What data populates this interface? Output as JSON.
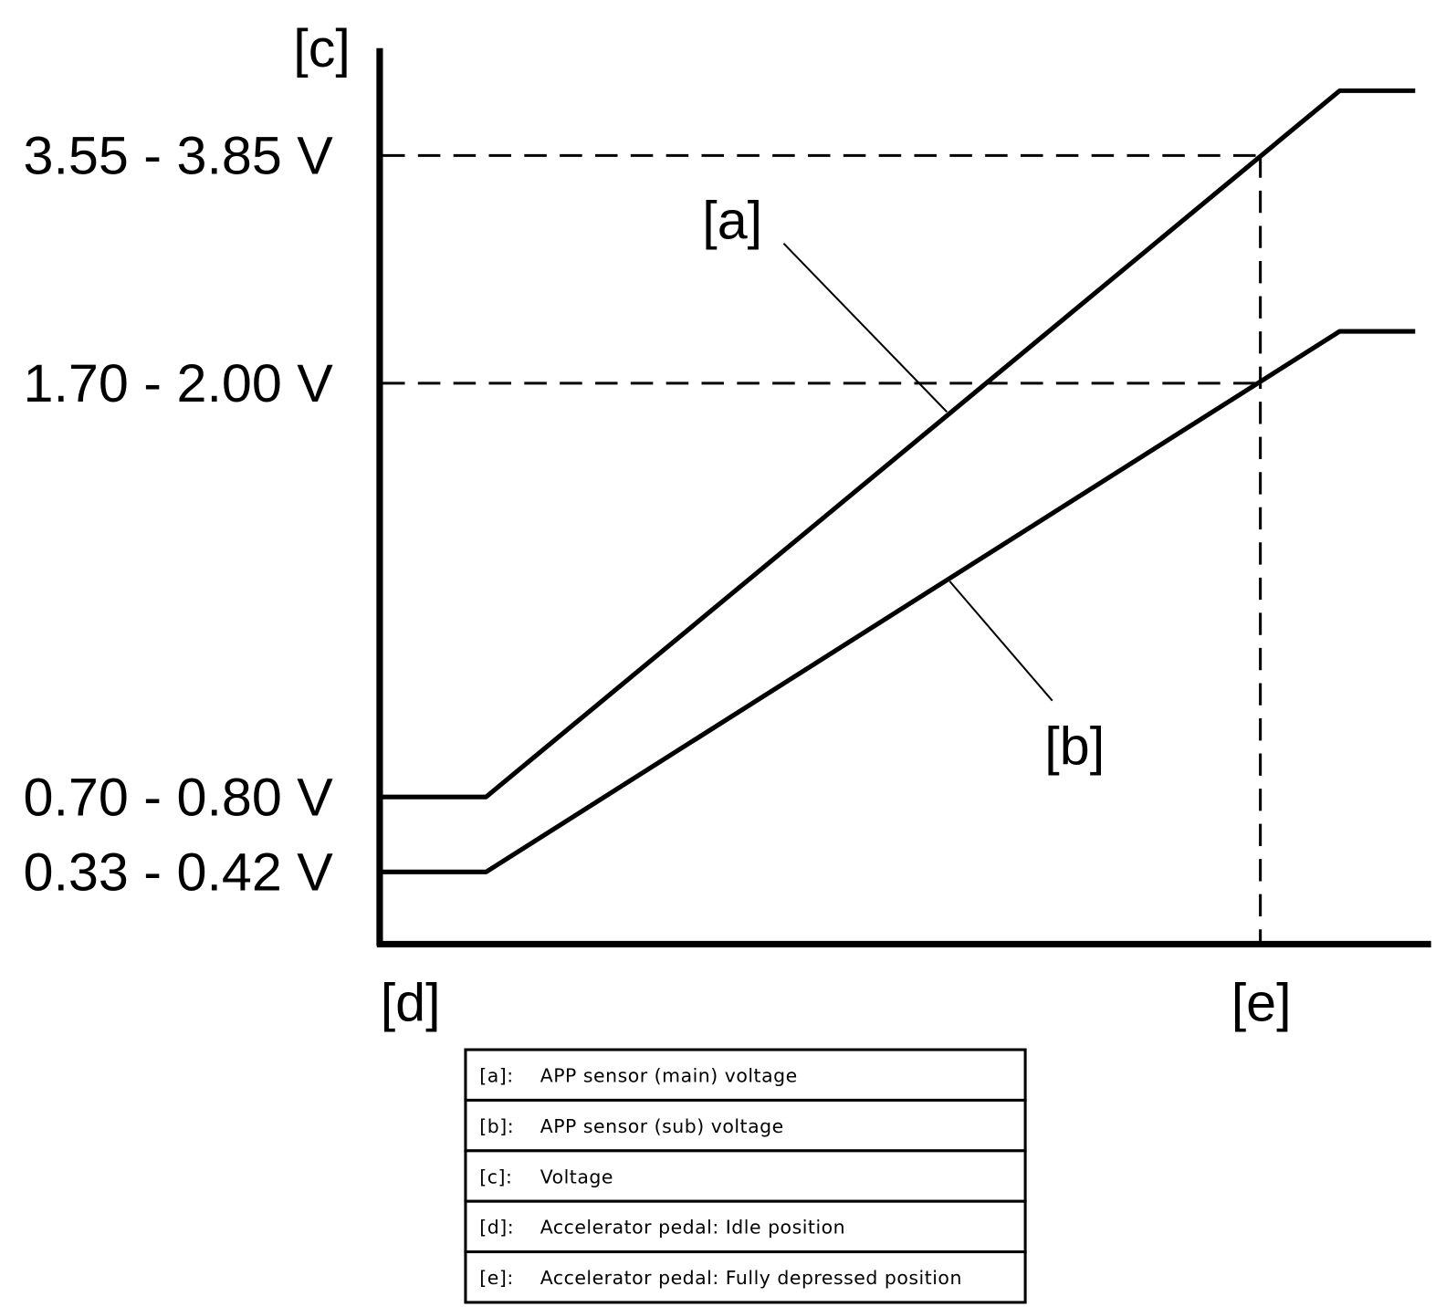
{
  "axis_label": "[c]",
  "voltage_labels": [
    "3.55 - 3.85 V",
    "1.70 - 2.00 V",
    "0.70 - 0.80 V",
    "0.33 - 0.42 V"
  ],
  "curve_labels": [
    "[a]",
    "[b]"
  ],
  "position_labels": [
    "[d]",
    "[e]"
  ],
  "legend": {
    "rows": [
      [
        "[a]:",
        "APP sensor (main) voltage"
      ],
      [
        "[b]:",
        "APP sensor (sub) voltage"
      ],
      [
        "[c]:",
        "Voltage"
      ],
      [
        "[d]:",
        "Accelerator pedal: Idle position"
      ],
      [
        "[e]:",
        "Accelerator pedal: Fully depressed position"
      ]
    ]
  }
}
